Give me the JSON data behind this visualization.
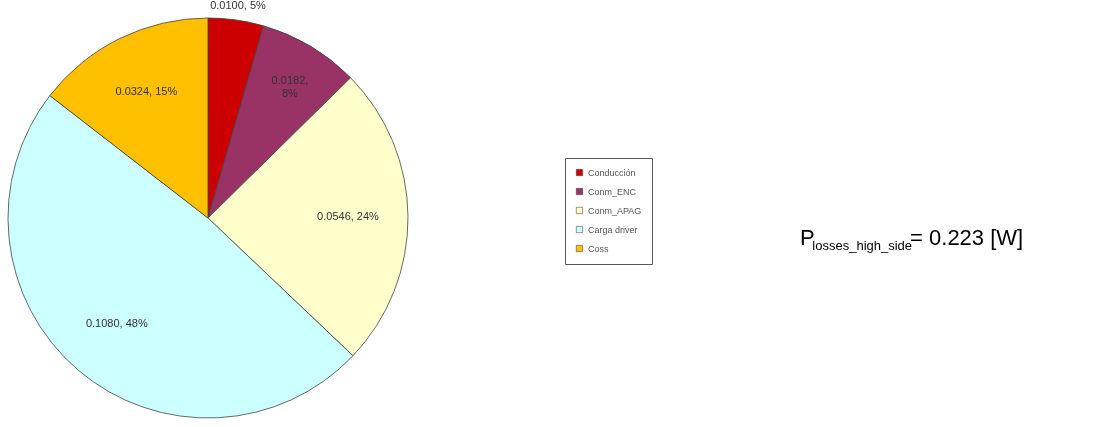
{
  "chart_data": {
    "type": "pie",
    "categories": [
      "Conducción",
      "Conm_ENC",
      "Conm_APAG",
      "Carga driver",
      "Coss"
    ],
    "values": [
      0.01,
      0.0182,
      0.0546,
      0.108,
      0.0324
    ],
    "colors": [
      "#cc0000",
      "#993366",
      "#ffffcc",
      "#ccffff",
      "#ffc000"
    ],
    "value_labels": [
      "0.0100, 5%",
      "0.0182, 8%",
      "0.0546, 24%",
      "0.1080, 48%",
      "0.0324, 15%"
    ],
    "legend": "right",
    "annotations": [
      "P$_{losses_high_side}$= 0.223 [W]"
    ]
  }
}
